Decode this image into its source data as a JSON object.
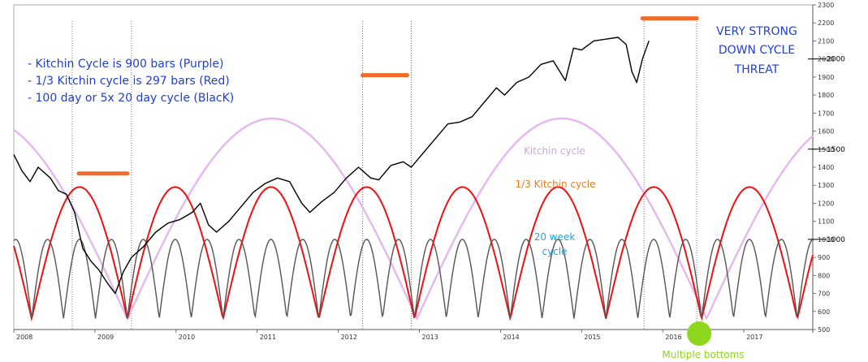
{
  "chart_data": {
    "type": "line",
    "title": "",
    "xlabel": "",
    "ylabel": "",
    "x_tick_labels": [
      "2008",
      "2009",
      "2010",
      "2011",
      "2012",
      "2013",
      "2014",
      "2015",
      "2016",
      "2017"
    ],
    "xlim": [
      2008.0,
      2017.85
    ],
    "ylim": [
      500,
      2300
    ],
    "y_tick_labels": [
      "500",
      "600",
      "700",
      "800",
      "900",
      "1000",
      "1100",
      "1200",
      "1300",
      "1400",
      "1500",
      "1600",
      "1700",
      "1800",
      "1900",
      "2000",
      "2100",
      "2200",
      "2300"
    ],
    "y_major_labels": [
      "1000",
      "1500",
      "2000"
    ],
    "grid": false,
    "price_series": {
      "name": "",
      "color": "#000000",
      "points": [
        [
          2008.0,
          1470
        ],
        [
          2008.1,
          1380
        ],
        [
          2008.2,
          1320
        ],
        [
          2008.3,
          1400
        ],
        [
          2008.45,
          1340
        ],
        [
          2008.55,
          1270
        ],
        [
          2008.65,
          1250
        ],
        [
          2008.75,
          1150
        ],
        [
          2008.85,
          950
        ],
        [
          2008.95,
          880
        ],
        [
          2009.05,
          830
        ],
        [
          2009.15,
          760
        ],
        [
          2009.25,
          700
        ],
        [
          2009.35,
          820
        ],
        [
          2009.45,
          900
        ],
        [
          2009.6,
          960
        ],
        [
          2009.75,
          1040
        ],
        [
          2009.9,
          1090
        ],
        [
          2010.05,
          1110
        ],
        [
          2010.2,
          1150
        ],
        [
          2010.3,
          1200
        ],
        [
          2010.4,
          1080
        ],
        [
          2010.5,
          1040
        ],
        [
          2010.65,
          1100
        ],
        [
          2010.8,
          1180
        ],
        [
          2010.95,
          1260
        ],
        [
          2011.1,
          1310
        ],
        [
          2011.25,
          1340
        ],
        [
          2011.4,
          1320
        ],
        [
          2011.55,
          1200
        ],
        [
          2011.65,
          1150
        ],
        [
          2011.8,
          1210
        ],
        [
          2011.95,
          1260
        ],
        [
          2012.1,
          1340
        ],
        [
          2012.25,
          1400
        ],
        [
          2012.4,
          1340
        ],
        [
          2012.5,
          1330
        ],
        [
          2012.65,
          1410
        ],
        [
          2012.8,
          1430
        ],
        [
          2012.9,
          1400
        ],
        [
          2013.05,
          1480
        ],
        [
          2013.2,
          1560
        ],
        [
          2013.35,
          1640
        ],
        [
          2013.5,
          1650
        ],
        [
          2013.65,
          1680
        ],
        [
          2013.8,
          1760
        ],
        [
          2013.95,
          1840
        ],
        [
          2014.05,
          1800
        ],
        [
          2014.2,
          1870
        ],
        [
          2014.35,
          1900
        ],
        [
          2014.5,
          1970
        ],
        [
          2014.65,
          1990
        ],
        [
          2014.8,
          1880
        ],
        [
          2014.9,
          2060
        ],
        [
          2015.0,
          2050
        ],
        [
          2015.15,
          2100
        ],
        [
          2015.3,
          2110
        ],
        [
          2015.45,
          2120
        ],
        [
          2015.55,
          2080
        ],
        [
          2015.62,
          1930
        ],
        [
          2015.68,
          1870
        ],
        [
          2015.75,
          2000
        ],
        [
          2015.83,
          2100
        ]
      ]
    },
    "series": [
      {
        "name": "Kitchin Cycle is 900 bars (Purple)",
        "color": "#e6b8f2",
        "bottom": 560,
        "peak": 1670,
        "period_years": 3.57,
        "first_trough": 2009.4
      },
      {
        "name": "1/3 Kitchin cycle is 297 bars (Red)",
        "color": "#ee1111",
        "bottom": 560,
        "peak": 1290,
        "period_years": 1.18,
        "first_trough": 2008.22
      },
      {
        "name": "100 day or 5x 20 day cycle (BlacK)",
        "color": "#555555",
        "bottom": 560,
        "peak": 1000,
        "period_years": 0.3933,
        "first_trough": 2008.22
      }
    ],
    "highlight_bars": [
      {
        "x_start": 2008.8,
        "x_end": 2009.4,
        "y": 1365,
        "color": "#f26b2a"
      },
      {
        "x_start": 2012.3,
        "x_end": 2012.85,
        "y": 1910,
        "color": "#f26b2a"
      },
      {
        "x_start": 2015.75,
        "x_end": 2016.42,
        "y": 2225,
        "color": "#f26b2a"
      }
    ],
    "vertical_markers": [
      2008.72,
      2009.45,
      2012.3,
      2012.9,
      2015.77,
      2016.42
    ],
    "bottom_marker": {
      "x": 2016.45,
      "color": "#8fd61f"
    },
    "annotations": {
      "legend_lines": [
        "- Kitchin Cycle is 900 bars (Purple)",
        "- 1/3 Kitchin cycle is 297 bars (Red)",
        "- 100 day or 5x 20 day cycle (BlacK)"
      ],
      "threat_lines": [
        "VERY STRONG",
        "DOWN CYCLE",
        "THREAT"
      ],
      "kitchin_label": "Kitchin cycle",
      "third_kitchin_label": "1/3 Kitchin cycle",
      "week20_lines": [
        "20 week",
        "cycle"
      ],
      "multiple_bottoms": "Multiple bottoms"
    },
    "colors": {
      "legend_text": "#1f3fd6",
      "kitchin_label": "#c9a8e0",
      "third_kitchin_label": "#f07a1a",
      "week20_label": "#1aa3d9",
      "multiple_bottoms": "#8fd61f"
    }
  }
}
